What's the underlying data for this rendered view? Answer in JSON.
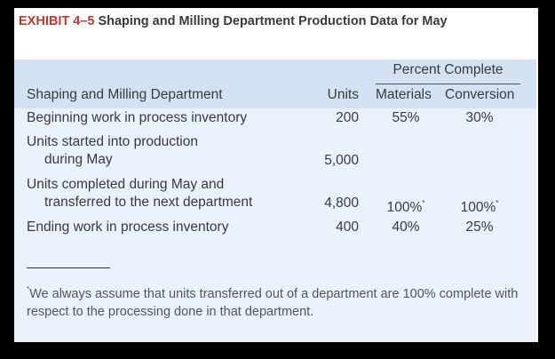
{
  "title": {
    "exhibit": "EXHIBIT 4–5",
    "text": "Shaping and Milling Department Production Data for May"
  },
  "table": {
    "percent_complete_header": "Percent Complete",
    "headers": {
      "department": "Shaping and Milling Department",
      "units": "Units",
      "materials": "Materials",
      "conversion": "Conversion"
    },
    "rows": [
      {
        "label": "Beginning work in process inventory",
        "units": "200",
        "materials": "55%",
        "conversion": "30%"
      },
      {
        "label_line1": "Units started into production",
        "label_line2": "during May",
        "units": "5,000"
      },
      {
        "label_line1": "Units completed during May and",
        "label_line2": "transferred to the next department",
        "units": "4,800",
        "materials": "100%",
        "conversion": "100%"
      },
      {
        "label": "Ending work in process inventory",
        "units": "400",
        "materials": "40%",
        "conversion": "25%"
      }
    ],
    "footnote_mark": "*",
    "footnote": "We always assume that units transferred out of a department are 100% complete with respect to the processing done in that department."
  },
  "colors": {
    "exhibit": "#c0392b",
    "header_band": "#d3e2f3",
    "table_bg": "#eaf1fa"
  }
}
